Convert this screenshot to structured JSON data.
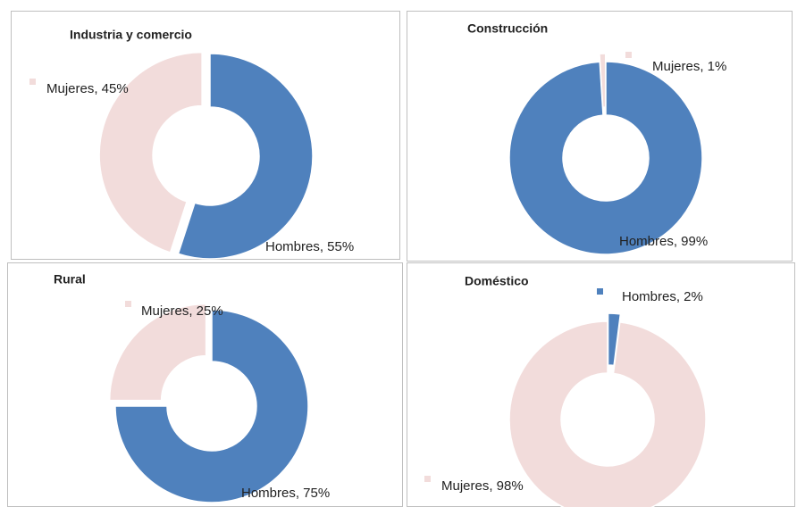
{
  "chart_data": [
    {
      "type": "donut",
      "title": "Industria y comercio",
      "categories": [
        "Hombres",
        "Mujeres"
      ],
      "values": [
        55,
        45
      ],
      "value_labels": [
        "Hombres, 55%",
        "Mujeres, 45%"
      ],
      "colors": [
        "#4f81bd",
        "#f2dcdb"
      ]
    },
    {
      "type": "donut",
      "title": "Construcción",
      "categories": [
        "Hombres",
        "Mujeres"
      ],
      "values": [
        99,
        1
      ],
      "value_labels": [
        "Hombres, 99%",
        "Mujeres, 1%"
      ],
      "colors": [
        "#4f81bd",
        "#f2dcdb"
      ]
    },
    {
      "type": "donut",
      "title": "Rural",
      "categories": [
        "Hombres",
        "Mujeres"
      ],
      "values": [
        75,
        25
      ],
      "value_labels": [
        "Hombres, 75%",
        "Mujeres, 25%"
      ],
      "colors": [
        "#4f81bd",
        "#f2dcdb"
      ]
    },
    {
      "type": "donut",
      "title": "Doméstico",
      "categories": [
        "Hombres",
        "Mujeres"
      ],
      "values": [
        2,
        98
      ],
      "value_labels": [
        "Hombres, 2%",
        "Mujeres, 98%"
      ],
      "colors": [
        "#4f81bd",
        "#f2dcdb"
      ]
    }
  ]
}
